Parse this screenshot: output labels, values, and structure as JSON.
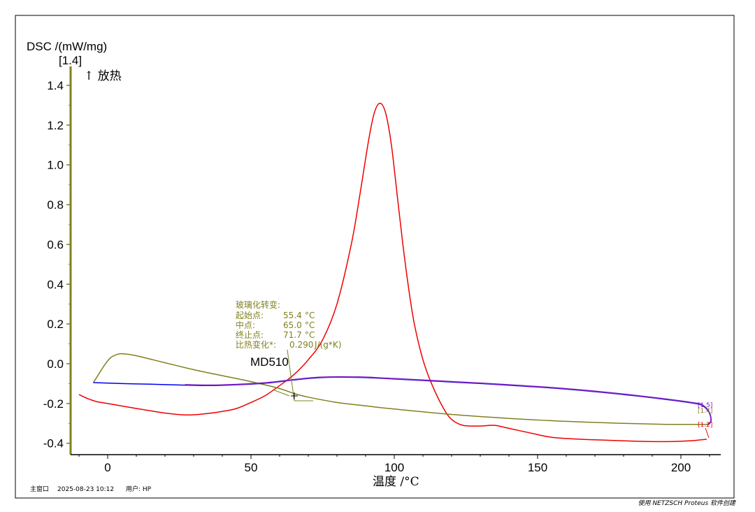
{
  "chart_data": {
    "type": "line",
    "ylabel": "DSC /(mW/mg)",
    "ylabel_tag": "[1.4]",
    "exo_label": "↑ 放热",
    "xlabel": "温度 /°C",
    "xlim": [
      -13,
      213
    ],
    "ylim": [
      -0.45,
      1.5
    ],
    "x_ticks": [
      0,
      50,
      100,
      150,
      200
    ],
    "y_ticks": [
      -0.4,
      -0.2,
      0.0,
      0.2,
      0.4,
      0.6,
      0.8,
      1.0,
      1.2,
      1.4
    ],
    "y_tick_labels": [
      "-0.4",
      "-0.2",
      "0.0",
      "0.2",
      "0.4",
      "0.6",
      "0.8",
      "1.0",
      "1.2",
      "1.4"
    ],
    "x_tick_labels": [
      "0",
      "50",
      "100",
      "150",
      "200"
    ],
    "series": [
      {
        "color": "#ee0000",
        "points": [
          [
            -10,
            -0.155
          ],
          [
            -7,
            -0.175
          ],
          [
            -4,
            -0.19
          ],
          [
            0,
            -0.2
          ],
          [
            10,
            -0.225
          ],
          [
            20,
            -0.248
          ],
          [
            28,
            -0.258
          ],
          [
            35,
            -0.25
          ],
          [
            40,
            -0.24
          ],
          [
            45,
            -0.225
          ],
          [
            50,
            -0.195
          ],
          [
            55,
            -0.16
          ],
          [
            60,
            -0.11
          ],
          [
            65,
            -0.055
          ],
          [
            70,
            0.02
          ],
          [
            75,
            0.12
          ],
          [
            80,
            0.3
          ],
          [
            85,
            0.6
          ],
          [
            88,
            0.85
          ],
          [
            91,
            1.12
          ],
          [
            93,
            1.26
          ],
          [
            95,
            1.31
          ],
          [
            97,
            1.26
          ],
          [
            99,
            1.1
          ],
          [
            101,
            0.85
          ],
          [
            103,
            0.6
          ],
          [
            105,
            0.38
          ],
          [
            107,
            0.2
          ],
          [
            110,
            0.02
          ],
          [
            113,
            -0.1
          ],
          [
            117,
            -0.22
          ],
          [
            120,
            -0.28
          ],
          [
            124,
            -0.31
          ],
          [
            130,
            -0.313
          ],
          [
            135,
            -0.31
          ],
          [
            140,
            -0.325
          ],
          [
            148,
            -0.35
          ],
          [
            155,
            -0.37
          ],
          [
            165,
            -0.38
          ],
          [
            175,
            -0.385
          ],
          [
            185,
            -0.39
          ],
          [
            195,
            -0.392
          ],
          [
            203,
            -0.388
          ],
          [
            209,
            -0.38
          ]
        ]
      },
      {
        "color": "#808020",
        "points": [
          [
            -5,
            -0.095
          ],
          [
            -3,
            -0.05
          ],
          [
            -1,
            -0.005
          ],
          [
            1,
            0.03
          ],
          [
            3,
            0.045
          ],
          [
            5,
            0.05
          ],
          [
            10,
            0.04
          ],
          [
            20,
            0.005
          ],
          [
            30,
            -0.03
          ],
          [
            40,
            -0.06
          ],
          [
            50,
            -0.09
          ],
          [
            60,
            -0.125
          ],
          [
            65,
            -0.15
          ],
          [
            70,
            -0.168
          ],
          [
            80,
            -0.195
          ],
          [
            90,
            -0.212
          ],
          [
            100,
            -0.228
          ],
          [
            120,
            -0.255
          ],
          [
            140,
            -0.275
          ],
          [
            160,
            -0.29
          ],
          [
            180,
            -0.3
          ],
          [
            195,
            -0.305
          ],
          [
            205,
            -0.305
          ],
          [
            210,
            -0.305
          ]
        ]
      },
      {
        "color": "#0000ee",
        "points": [
          [
            -5,
            -0.095
          ],
          [
            5,
            -0.1
          ],
          [
            15,
            -0.103
          ],
          [
            25,
            -0.107
          ],
          [
            35,
            -0.11
          ],
          [
            45,
            -0.106
          ],
          [
            55,
            -0.098
          ],
          [
            65,
            -0.082
          ],
          [
            72,
            -0.072
          ],
          [
            80,
            -0.068
          ],
          [
            90,
            -0.07
          ],
          [
            100,
            -0.077
          ],
          [
            120,
            -0.092
          ],
          [
            140,
            -0.108
          ],
          [
            160,
            -0.128
          ],
          [
            180,
            -0.155
          ],
          [
            195,
            -0.18
          ],
          [
            205,
            -0.2
          ],
          [
            208,
            -0.215
          ],
          [
            210,
            -0.25
          ],
          [
            210.5,
            -0.29
          ],
          [
            209.5,
            -0.305
          ]
        ]
      },
      {
        "color": "#7a1fc0",
        "points": [
          [
            27,
            -0.105
          ],
          [
            35,
            -0.108
          ],
          [
            45,
            -0.104
          ],
          [
            55,
            -0.096
          ],
          [
            65,
            -0.08
          ],
          [
            72,
            -0.07
          ],
          [
            80,
            -0.066
          ],
          [
            90,
            -0.068
          ],
          [
            100,
            -0.075
          ],
          [
            120,
            -0.09
          ],
          [
            140,
            -0.106
          ],
          [
            160,
            -0.126
          ],
          [
            180,
            -0.153
          ],
          [
            195,
            -0.178
          ],
          [
            205,
            -0.198
          ],
          [
            208,
            -0.212
          ],
          [
            210,
            -0.248
          ],
          [
            210.5,
            -0.288
          ],
          [
            209.5,
            -0.302
          ]
        ]
      }
    ],
    "annotations": {
      "sample_label": "MD510",
      "glass_transition": {
        "title": "玻璃化转变:",
        "rows": [
          {
            "label": "起始点:",
            "value": "55.4",
            "unit": "°C"
          },
          {
            "label": "中点:",
            "value": "65.0",
            "unit": "°C"
          },
          {
            "label": "终止点:",
            "value": "71.7",
            "unit": "°C"
          },
          {
            "label": "比热变化*:",
            "value": "0.290",
            "unit": "J/(g*K)"
          }
        ]
      },
      "end_tags": [
        {
          "text": "[1.5]",
          "color": "#7a1fc0"
        },
        {
          "text": "[1.4]",
          "color": "#808020"
        },
        {
          "text": "[1.2]",
          "color": "#ee0000"
        }
      ]
    }
  },
  "footer": {
    "window": "主窗口",
    "datetime": "2025-08-23 10:12",
    "user": "用户: HP",
    "credit": "使用 NETZSCH Proteus 软件创建"
  },
  "colors": {
    "axis_y": "#808020",
    "frame": "#000000",
    "gridless": true
  }
}
